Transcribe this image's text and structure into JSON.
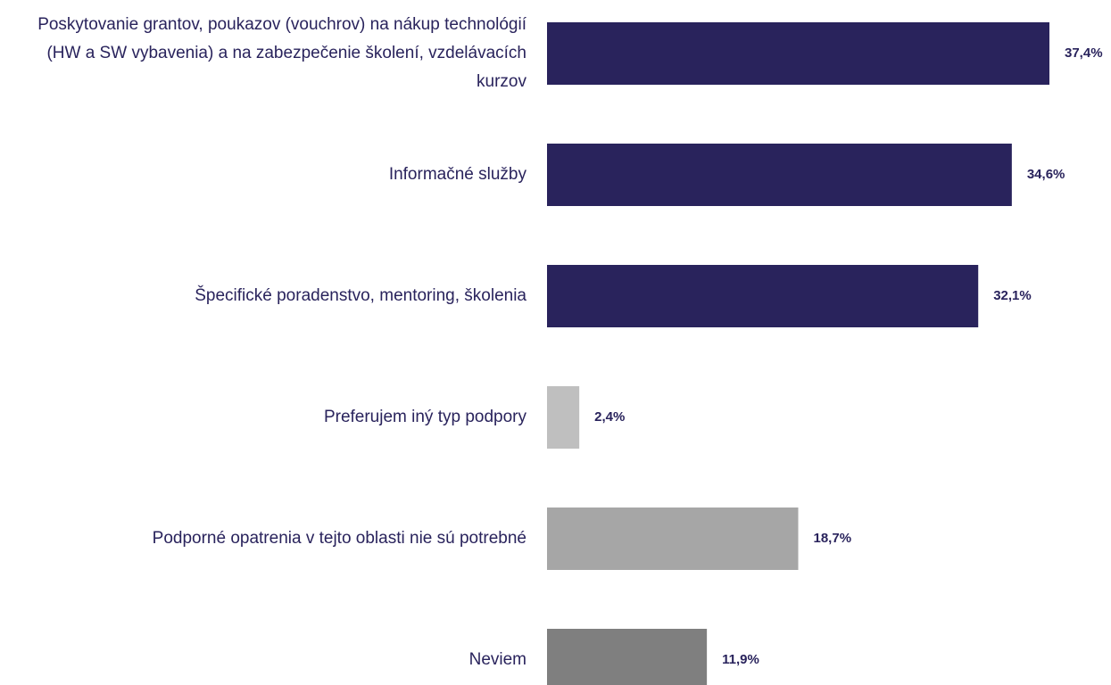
{
  "chart_data": {
    "type": "bar",
    "orientation": "horizontal",
    "categories": [
      "Poskytovanie grantov, poukazov (vouchrov) na nákup technológií (HW a SW vybavenia) a na zabezpečenie školení, vzdelávacích kurzov",
      "Informačné služby",
      "Špecifické poradenstvo, mentoring, školenia",
      "Preferujem iný typ podpory",
      "Podporné opatrenia v tejto oblasti nie sú potrebné",
      "Neviem"
    ],
    "values": [
      37.4,
      34.6,
      32.1,
      2.4,
      18.7,
      11.9
    ],
    "value_labels": [
      "37,4%",
      "34,6%",
      "32,1%",
      "2,4%",
      "18,7%",
      "11,9%"
    ],
    "colors": [
      "#29235c",
      "#29235c",
      "#29235c",
      "#bfbfbf",
      "#a6a6a6",
      "#7f7f7f"
    ]
  }
}
